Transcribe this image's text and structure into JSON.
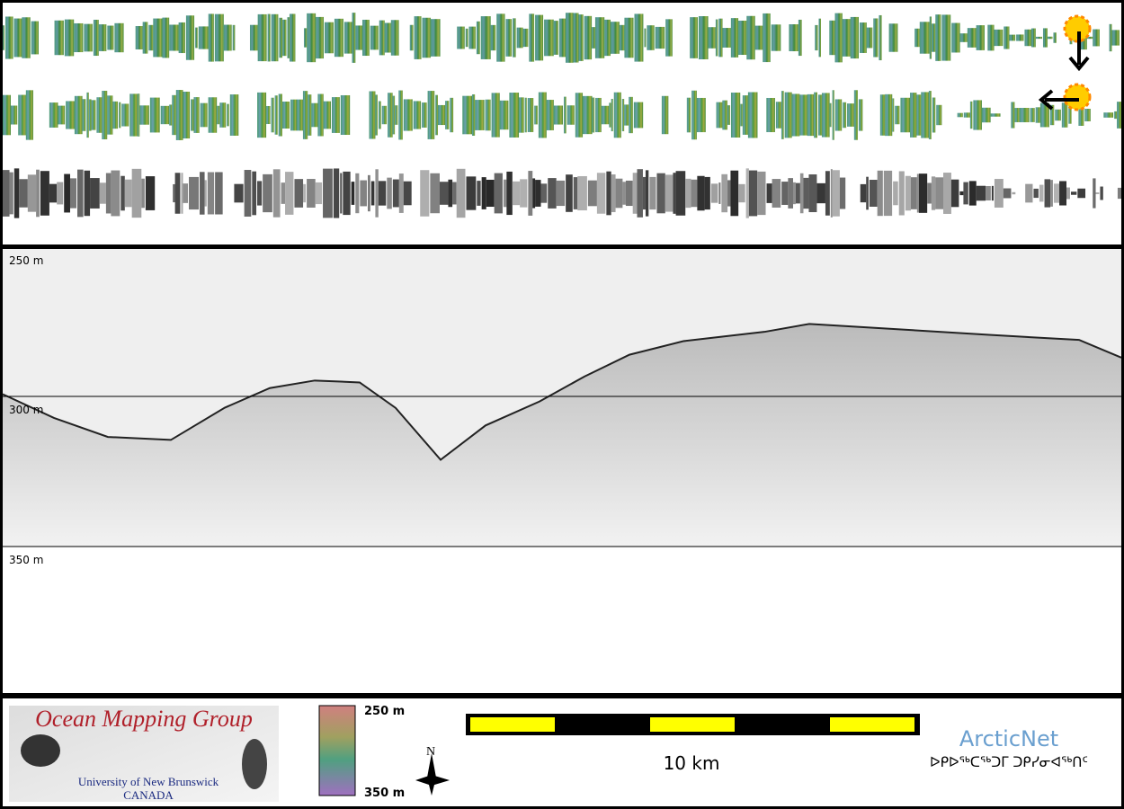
{
  "profile": {
    "depth_labels": [
      "250 m",
      "300 m",
      "350 m"
    ]
  },
  "footer": {
    "logo": {
      "title": "Ocean Mapping Group",
      "university": "University of New Brunswick",
      "country": "CANADA"
    },
    "colorbar": {
      "top_label": "250 m",
      "bottom_label": "350 m"
    },
    "north": "N",
    "scale_bar": "10 km",
    "arcticnet": {
      "name": "ArcticNet",
      "inuktitut": "ᐅᑭᐅᖅᑕᖅᑐᒥ ᑐᑭᓯᓂᐊᖅᑎᑦ"
    }
  }
}
